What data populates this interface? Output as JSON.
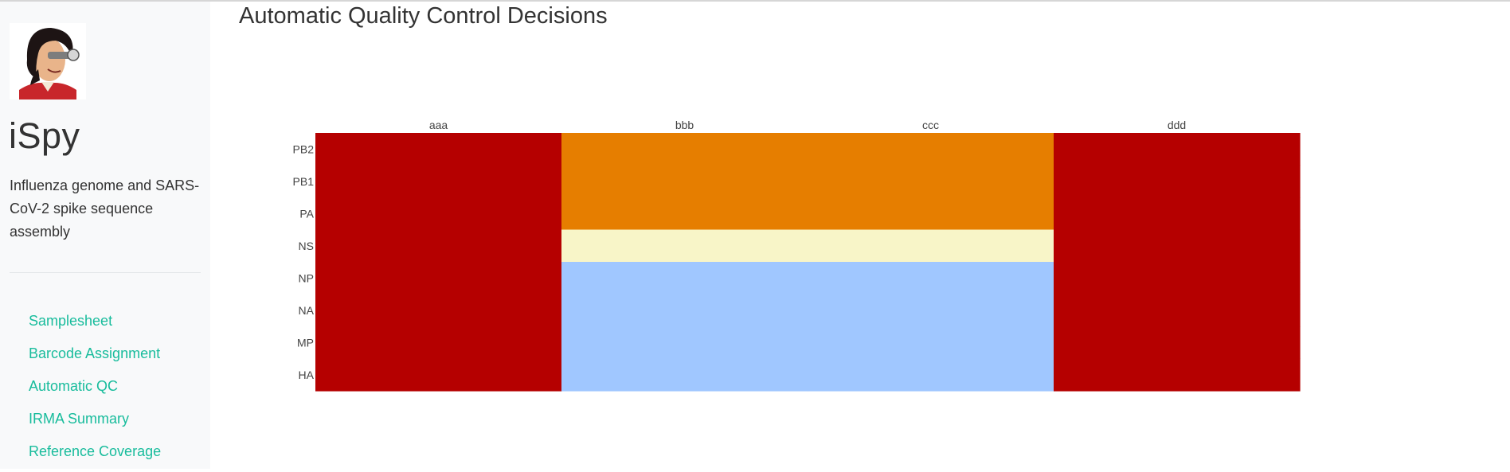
{
  "app": {
    "title": "iSpy",
    "subtitle": "Influenza genome and SARS-CoV-2 spike sequence assembly",
    "logo_icon": "cartoon-spy-portrait-logo"
  },
  "nav": {
    "items": [
      {
        "label": "Samplesheet"
      },
      {
        "label": "Barcode Assignment"
      },
      {
        "label": "Automatic QC"
      },
      {
        "label": "IRMA Summary"
      },
      {
        "label": "Reference Coverage"
      }
    ],
    "link_color": "#18bc9c"
  },
  "main": {
    "title": "Automatic Quality Control Decisions"
  },
  "chart_data": {
    "type": "heatmap",
    "title": "",
    "xlabel": "",
    "ylabel": "",
    "x": [
      "aaa",
      "bbb",
      "ccc",
      "ddd"
    ],
    "y": [
      "PB2",
      "PB1",
      "PA",
      "NS",
      "NP",
      "NA",
      "MP",
      "HA"
    ],
    "colors": {
      "red": "#b50000",
      "orange": "#e67e00",
      "pale_yellow": "#f8f5c8",
      "light_blue": "#a0c7ff"
    },
    "cells": [
      [
        "red",
        "orange",
        "orange",
        "red"
      ],
      [
        "red",
        "orange",
        "orange",
        "red"
      ],
      [
        "red",
        "orange",
        "orange",
        "red"
      ],
      [
        "red",
        "pale_yellow",
        "pale_yellow",
        "red"
      ],
      [
        "red",
        "light_blue",
        "light_blue",
        "red"
      ],
      [
        "red",
        "light_blue",
        "light_blue",
        "red"
      ],
      [
        "red",
        "light_blue",
        "light_blue",
        "red"
      ],
      [
        "red",
        "light_blue",
        "light_blue",
        "red"
      ]
    ],
    "grid": false,
    "legend": "none",
    "x_axis_position": "top"
  }
}
